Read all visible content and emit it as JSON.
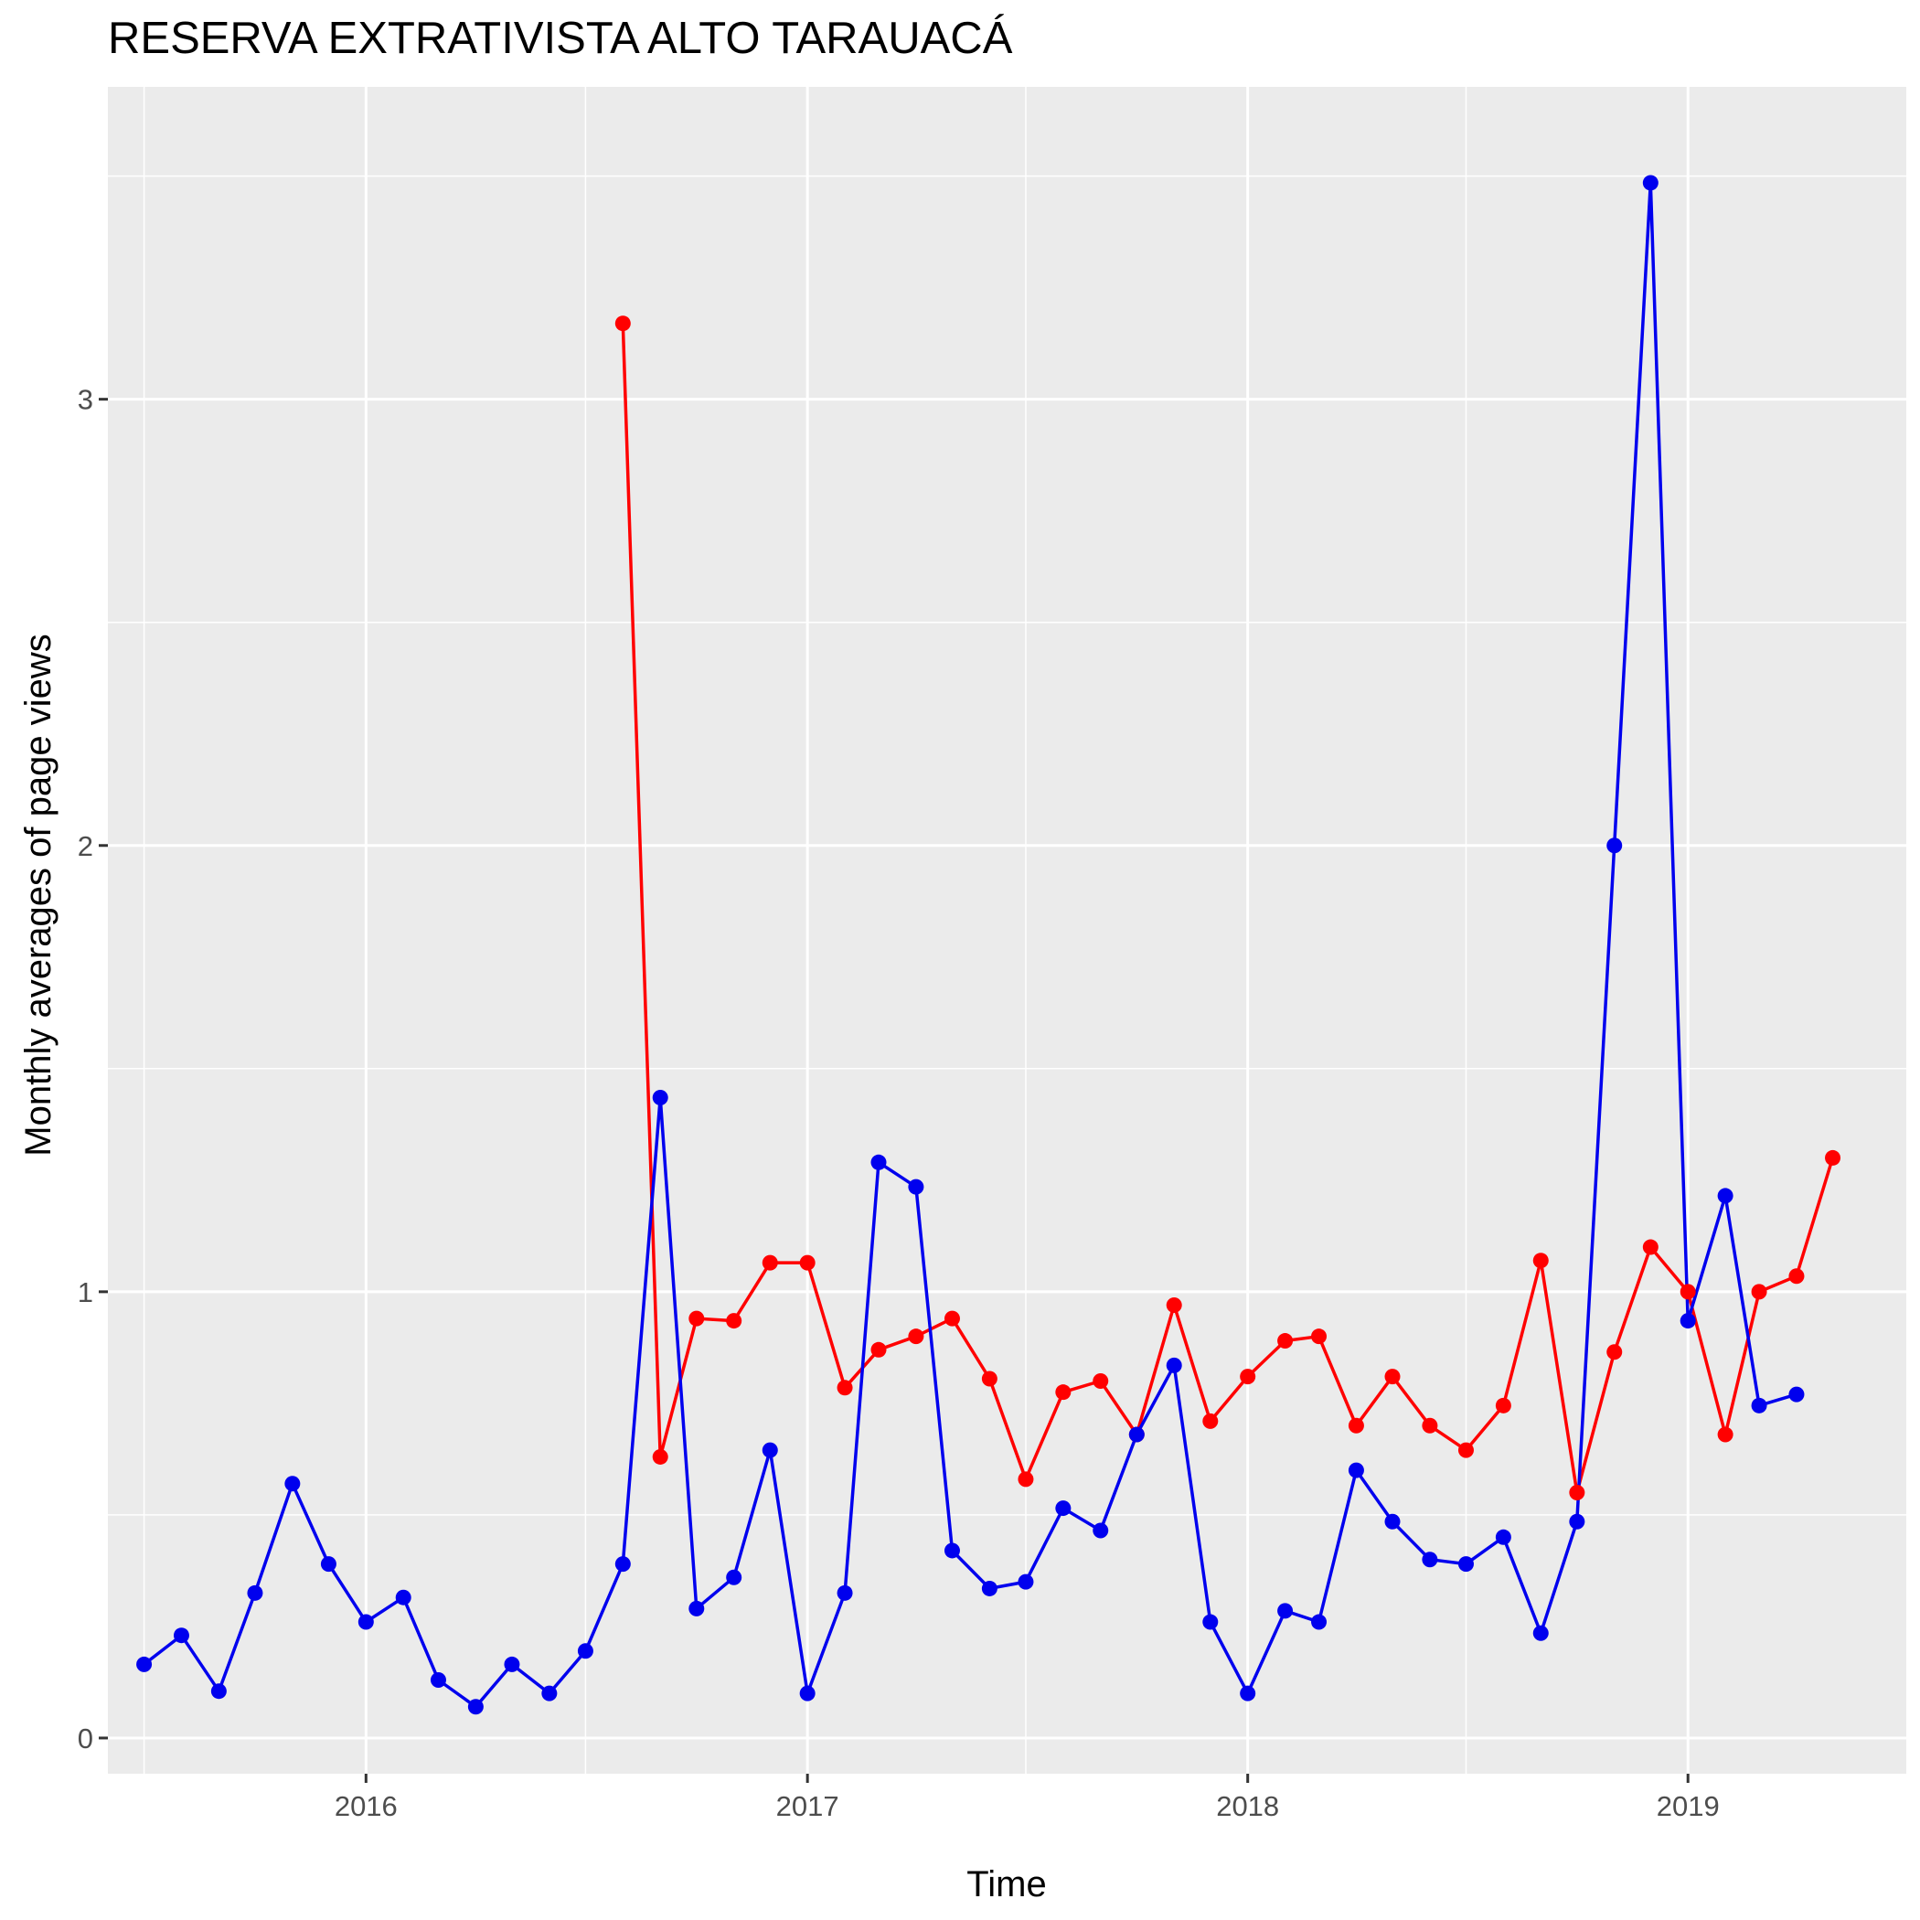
{
  "chart_data": {
    "type": "line",
    "title": "RESERVA EXTRATIVISTA ALTO TARAUACÁ",
    "xlabel": "Time",
    "ylabel": "Monthly averages of page views",
    "x_ticks": [
      "2016",
      "2017",
      "2018",
      "2019"
    ],
    "y_ticks": [
      0,
      1,
      2,
      3
    ],
    "ylim": [
      -0.08,
      3.7
    ],
    "xlim": [
      "2015-06-01",
      "2019-07-01"
    ],
    "grid": true,
    "legend": "none",
    "panel_color": "#ebebeb",
    "series": [
      {
        "color": "#ff0000",
        "x": [
          "2016-08-01",
          "2016-09-01",
          "2016-10-01",
          "2016-11-01",
          "2016-12-01",
          "2017-01-01",
          "2017-02-01",
          "2017-03-01",
          "2017-04-01",
          "2017-05-01",
          "2017-06-01",
          "2017-07-01",
          "2017-08-01",
          "2017-09-01",
          "2017-10-01",
          "2017-11-01",
          "2017-12-01",
          "2018-01-01",
          "2018-02-01",
          "2018-03-01",
          "2018-04-01",
          "2018-05-01",
          "2018-06-01",
          "2018-07-01",
          "2018-08-01",
          "2018-09-01",
          "2018-10-01",
          "2018-11-01",
          "2018-12-01",
          "2019-01-01",
          "2019-02-01",
          "2019-03-01",
          "2019-04-01",
          "2019-05-01"
        ],
        "y": [
          3.17,
          0.63,
          0.94,
          0.935,
          1.065,
          1.065,
          0.785,
          0.87,
          0.9,
          0.94,
          0.805,
          0.58,
          0.775,
          0.8,
          0.68,
          0.97,
          0.71,
          0.81,
          0.89,
          0.9,
          0.7,
          0.81,
          0.7,
          0.645,
          0.745,
          1.07,
          0.55,
          0.865,
          1.1,
          1.0,
          0.68,
          1.0,
          1.035,
          1.3
        ]
      },
      {
        "color": "#0000ee",
        "x": [
          "2015-07-01",
          "2015-08-01",
          "2015-09-01",
          "2015-10-01",
          "2015-11-01",
          "2015-12-01",
          "2016-01-01",
          "2016-02-01",
          "2016-03-01",
          "2016-04-01",
          "2016-05-01",
          "2016-06-01",
          "2016-07-01",
          "2016-08-01",
          "2016-09-01",
          "2016-10-01",
          "2016-11-01",
          "2016-12-01",
          "2017-01-01",
          "2017-02-01",
          "2017-03-01",
          "2017-04-01",
          "2017-05-01",
          "2017-06-01",
          "2017-07-01",
          "2017-08-01",
          "2017-09-01",
          "2017-10-01",
          "2017-11-01",
          "2017-12-01",
          "2018-01-01",
          "2018-02-01",
          "2018-03-01",
          "2018-04-01",
          "2018-05-01",
          "2018-06-01",
          "2018-07-01",
          "2018-08-01",
          "2018-09-01",
          "2018-10-01",
          "2018-11-01",
          "2018-12-01",
          "2019-01-01",
          "2019-02-01",
          "2019-03-01",
          "2019-04-01"
        ],
        "y": [
          0.165,
          0.23,
          0.105,
          0.325,
          0.57,
          0.39,
          0.26,
          0.315,
          0.13,
          0.07,
          0.165,
          0.1,
          0.195,
          0.39,
          1.435,
          0.29,
          0.36,
          0.645,
          0.1,
          0.325,
          1.29,
          1.235,
          0.42,
          0.335,
          0.35,
          0.515,
          0.465,
          0.68,
          0.835,
          0.26,
          0.1,
          0.285,
          0.26,
          0.6,
          0.485,
          0.4,
          0.39,
          0.45,
          0.235,
          0.485,
          2.0,
          3.485,
          0.935,
          1.215,
          0.745,
          0.77
        ]
      }
    ]
  }
}
